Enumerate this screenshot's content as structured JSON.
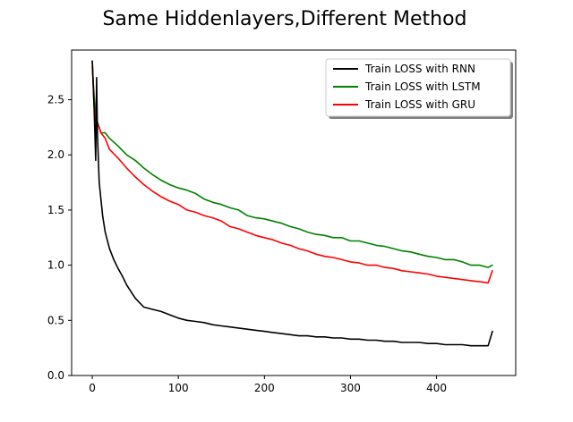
{
  "chart_data": {
    "type": "line",
    "title": "Same Hiddenlayers,Different Method",
    "xlabel": "",
    "ylabel": "",
    "xlim": [
      -24,
      492
    ],
    "ylim": [
      0.0,
      2.95
    ],
    "xticks": [
      "0",
      "100",
      "200",
      "300",
      "400"
    ],
    "yticks": [
      "0.0",
      "0.5",
      "1.0",
      "1.5",
      "2.0",
      "2.5"
    ],
    "legend_position": "top-right",
    "grid": false,
    "colors": {
      "rnn": "#000000",
      "lstm": "#008000",
      "gru": "#ff0000"
    },
    "series": [
      {
        "name": "Train LOSS with RNN",
        "color": "#000000",
        "x": [
          0,
          2,
          4,
          5,
          6,
          8,
          10,
          12,
          15,
          20,
          25,
          30,
          35,
          40,
          45,
          50,
          55,
          60,
          70,
          80,
          90,
          100,
          110,
          120,
          130,
          140,
          150,
          160,
          170,
          180,
          190,
          200,
          210,
          220,
          230,
          240,
          250,
          260,
          270,
          280,
          290,
          300,
          310,
          320,
          330,
          340,
          350,
          360,
          370,
          380,
          390,
          400,
          410,
          420,
          430,
          440,
          450,
          460,
          465
        ],
        "y": [
          2.85,
          2.45,
          1.95,
          2.7,
          2.2,
          1.75,
          1.6,
          1.45,
          1.3,
          1.15,
          1.05,
          0.97,
          0.9,
          0.82,
          0.76,
          0.7,
          0.66,
          0.62,
          0.6,
          0.58,
          0.55,
          0.52,
          0.5,
          0.49,
          0.48,
          0.46,
          0.45,
          0.44,
          0.43,
          0.42,
          0.41,
          0.4,
          0.39,
          0.38,
          0.37,
          0.36,
          0.36,
          0.35,
          0.35,
          0.34,
          0.34,
          0.33,
          0.33,
          0.32,
          0.32,
          0.31,
          0.31,
          0.3,
          0.3,
          0.3,
          0.29,
          0.29,
          0.28,
          0.28,
          0.28,
          0.27,
          0.27,
          0.27,
          0.4
        ]
      },
      {
        "name": "Train LOSS with LSTM",
        "color": "#008000",
        "x": [
          0,
          2,
          4,
          6,
          8,
          10,
          15,
          20,
          30,
          40,
          50,
          60,
          70,
          80,
          90,
          100,
          110,
          120,
          130,
          140,
          150,
          160,
          170,
          180,
          190,
          200,
          210,
          220,
          230,
          240,
          250,
          260,
          270,
          280,
          290,
          300,
          310,
          320,
          330,
          340,
          350,
          360,
          370,
          380,
          390,
          400,
          410,
          420,
          430,
          440,
          450,
          460,
          465
        ],
        "y": [
          2.8,
          2.55,
          2.35,
          2.3,
          2.25,
          2.2,
          2.2,
          2.15,
          2.08,
          2.0,
          1.95,
          1.88,
          1.82,
          1.77,
          1.73,
          1.7,
          1.68,
          1.65,
          1.6,
          1.57,
          1.55,
          1.52,
          1.5,
          1.45,
          1.43,
          1.42,
          1.4,
          1.38,
          1.35,
          1.33,
          1.3,
          1.28,
          1.27,
          1.25,
          1.25,
          1.22,
          1.22,
          1.2,
          1.18,
          1.17,
          1.15,
          1.13,
          1.12,
          1.1,
          1.08,
          1.07,
          1.05,
          1.05,
          1.03,
          1.0,
          1.0,
          0.98,
          1.0
        ]
      },
      {
        "name": "Train LOSS with GRU",
        "color": "#ff0000",
        "x": [
          0,
          2,
          4,
          6,
          8,
          10,
          15,
          20,
          30,
          40,
          50,
          60,
          70,
          80,
          90,
          100,
          110,
          120,
          130,
          140,
          150,
          160,
          170,
          180,
          190,
          200,
          210,
          220,
          230,
          240,
          250,
          260,
          270,
          280,
          290,
          300,
          310,
          320,
          330,
          340,
          350,
          360,
          370,
          380,
          390,
          400,
          410,
          420,
          430,
          440,
          450,
          460,
          465
        ],
        "y": [
          2.85,
          2.45,
          2.3,
          2.28,
          2.25,
          2.2,
          2.15,
          2.05,
          1.97,
          1.88,
          1.8,
          1.73,
          1.67,
          1.62,
          1.58,
          1.55,
          1.5,
          1.48,
          1.45,
          1.43,
          1.4,
          1.35,
          1.33,
          1.3,
          1.27,
          1.25,
          1.23,
          1.2,
          1.18,
          1.15,
          1.13,
          1.1,
          1.08,
          1.07,
          1.05,
          1.03,
          1.02,
          1.0,
          1.0,
          0.98,
          0.97,
          0.95,
          0.94,
          0.93,
          0.92,
          0.9,
          0.89,
          0.88,
          0.87,
          0.86,
          0.85,
          0.84,
          0.95
        ]
      }
    ]
  }
}
